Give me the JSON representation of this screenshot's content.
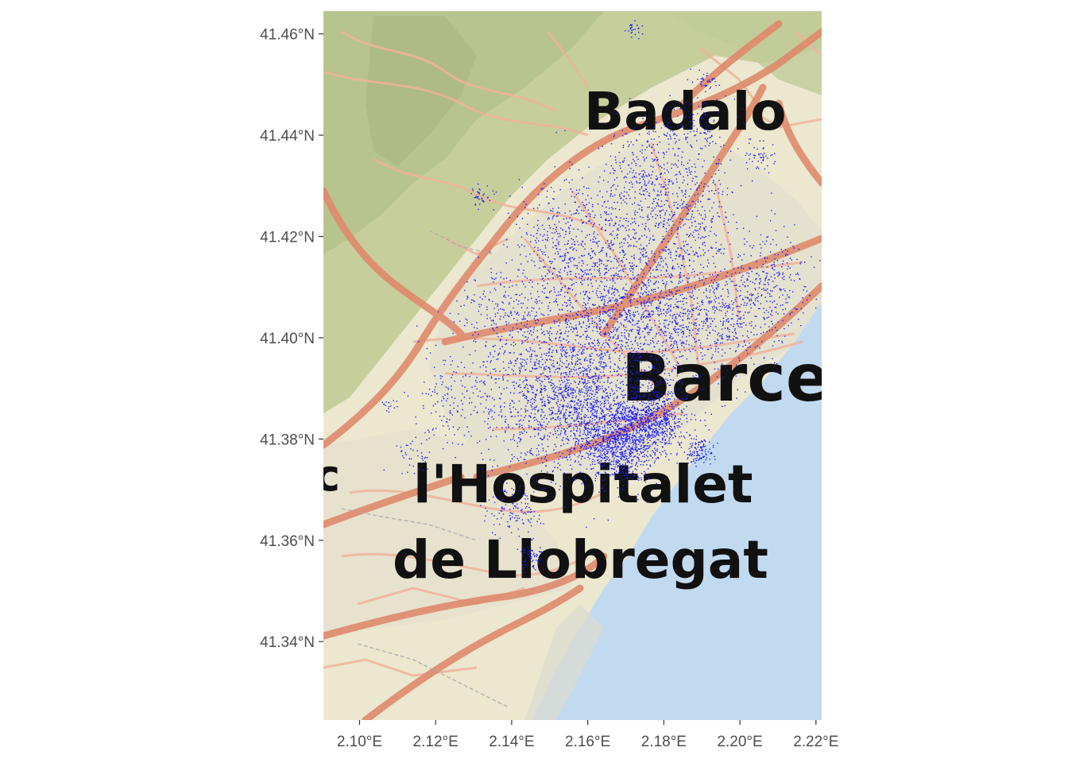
{
  "map": {
    "place_labels": [
      {
        "text": "Badalo"
      },
      {
        "text": "Barce"
      },
      {
        "text": "l'Hospitalet"
      },
      {
        "text": "de Llobregat"
      },
      {
        "text": "c"
      }
    ],
    "colors": {
      "land": "#ece7cf",
      "hills": "#b7c58e",
      "roads": "#ee9f83",
      "major_roads": "#d97a5e",
      "sea": "#c2daf0",
      "points": "#1a1aff"
    }
  },
  "chart_data": {
    "type": "scatter",
    "xlim": [
      2.0905,
      2.2215
    ],
    "ylim": [
      41.3245,
      41.4645
    ],
    "x_ticks": [
      {
        "value": 2.1,
        "label": "2.10°E"
      },
      {
        "value": 2.12,
        "label": "2.12°E"
      },
      {
        "value": 2.14,
        "label": "2.14°E"
      },
      {
        "value": 2.16,
        "label": "2.16°E"
      },
      {
        "value": 2.18,
        "label": "2.18°E"
      },
      {
        "value": 2.2,
        "label": "2.20°E"
      },
      {
        "value": 2.22,
        "label": "2.22°E"
      }
    ],
    "y_ticks": [
      {
        "value": 41.34,
        "label": "41.34°N"
      },
      {
        "value": 41.36,
        "label": "41.36°N"
      },
      {
        "value": 41.38,
        "label": "41.38°N"
      },
      {
        "value": 41.4,
        "label": "41.40°N"
      },
      {
        "value": 41.42,
        "label": "41.42°N"
      },
      {
        "value": 41.44,
        "label": "41.44°N"
      },
      {
        "value": 41.46,
        "label": "41.46°N"
      }
    ],
    "grid": false,
    "point_color": "#1a1aff",
    "point_clusters": [
      {
        "lon": 2.168,
        "lat": 41.38,
        "spread": 0.0055,
        "count": 1100
      },
      {
        "lon": 2.178,
        "lat": 41.384,
        "spread": 0.004,
        "count": 550
      },
      {
        "lon": 2.158,
        "lat": 41.387,
        "spread": 0.0085,
        "count": 900
      },
      {
        "lon": 2.145,
        "lat": 41.39,
        "spread": 0.01,
        "count": 600
      },
      {
        "lon": 2.162,
        "lat": 41.401,
        "spread": 0.011,
        "count": 900
      },
      {
        "lon": 2.178,
        "lat": 41.405,
        "spread": 0.009,
        "count": 650
      },
      {
        "lon": 2.195,
        "lat": 41.404,
        "spread": 0.008,
        "count": 450
      },
      {
        "lon": 2.207,
        "lat": 41.412,
        "spread": 0.006,
        "count": 260
      },
      {
        "lon": 2.17,
        "lat": 41.42,
        "spread": 0.011,
        "count": 550
      },
      {
        "lon": 2.155,
        "lat": 41.418,
        "spread": 0.008,
        "count": 320
      },
      {
        "lon": 2.186,
        "lat": 41.425,
        "spread": 0.007,
        "count": 320
      },
      {
        "lon": 2.176,
        "lat": 41.434,
        "spread": 0.006,
        "count": 220
      },
      {
        "lon": 2.188,
        "lat": 41.442,
        "spread": 0.004,
        "count": 120
      },
      {
        "lon": 2.191,
        "lat": 41.451,
        "spread": 0.0015,
        "count": 40
      },
      {
        "lon": 2.172,
        "lat": 41.461,
        "spread": 0.0012,
        "count": 25
      },
      {
        "lon": 2.205,
        "lat": 41.436,
        "spread": 0.002,
        "count": 50
      },
      {
        "lon": 2.189,
        "lat": 41.378,
        "spread": 0.002,
        "count": 120
      },
      {
        "lon": 2.141,
        "lat": 41.366,
        "spread": 0.0035,
        "count": 120
      },
      {
        "lon": 2.145,
        "lat": 41.357,
        "spread": 0.002,
        "count": 60
      },
      {
        "lon": 2.132,
        "lat": 41.428,
        "spread": 0.0015,
        "count": 35
      },
      {
        "lon": 2.125,
        "lat": 41.387,
        "spread": 0.006,
        "count": 120
      },
      {
        "lon": 2.114,
        "lat": 41.377,
        "spread": 0.0025,
        "count": 40
      },
      {
        "lon": 2.108,
        "lat": 41.387,
        "spread": 0.0012,
        "count": 15
      },
      {
        "lon": 2.137,
        "lat": 41.405,
        "spread": 0.006,
        "count": 160
      }
    ]
  }
}
